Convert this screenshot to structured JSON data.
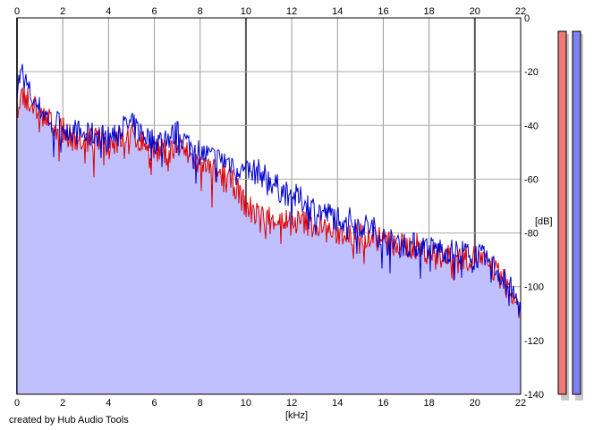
{
  "chart_data": {
    "type": "area",
    "x_ticks": [
      0,
      2,
      4,
      6,
      8,
      10,
      12,
      14,
      16,
      18,
      20,
      22
    ],
    "y_ticks": [
      0,
      -20,
      -40,
      -60,
      -80,
      -100,
      -120,
      -140
    ],
    "xlim": [
      0,
      22
    ],
    "ylim": [
      -140,
      0
    ],
    "xlabel": "[kHz]",
    "ylabel": "[dB]",
    "grid": true,
    "series": [
      {
        "color": "#0000cc",
        "x": [
          0,
          0.25,
          0.5,
          0.75,
          1,
          1.5,
          2,
          2.5,
          3,
          3.5,
          4,
          4.5,
          5,
          5.5,
          6,
          6.5,
          7,
          7.5,
          8,
          8.5,
          9,
          9.5,
          10,
          10.5,
          11,
          11.5,
          12,
          12.5,
          13,
          13.5,
          14,
          14.5,
          15,
          15.5,
          16,
          16.5,
          17,
          17.5,
          18,
          18.5,
          19,
          19.5,
          20,
          20.5,
          21,
          21.5,
          22
        ],
        "values": [
          -25,
          -20,
          -27,
          -31,
          -34,
          -38,
          -40,
          -42,
          -44,
          -43,
          -45,
          -41,
          -40,
          -43,
          -46,
          -45,
          -43,
          -47,
          -50,
          -52,
          -53,
          -54,
          -58,
          -57,
          -60,
          -64,
          -66,
          -68,
          -71,
          -73,
          -74,
          -75,
          -77,
          -78,
          -82,
          -84,
          -84,
          -85,
          -86,
          -86,
          -87,
          -87,
          -88,
          -90,
          -94,
          -100,
          -108
        ]
      },
      {
        "color": "#dd0000",
        "x": [
          0,
          0.25,
          0.5,
          0.75,
          1,
          1.5,
          2,
          2.5,
          3,
          3.5,
          4,
          4.5,
          5,
          5.5,
          6,
          6.5,
          7,
          7.5,
          8,
          8.5,
          9,
          9.5,
          10,
          10.5,
          11,
          11.5,
          12,
          12.5,
          13,
          13.5,
          14,
          14.5,
          15,
          15.5,
          16,
          16.5,
          17,
          17.5,
          18,
          18.5,
          19,
          19.5,
          20,
          20.5,
          21,
          21.5,
          22
        ],
        "values": [
          -40,
          -28,
          -30,
          -33,
          -36,
          -39,
          -42,
          -45,
          -46,
          -45,
          -47,
          -45,
          -44,
          -46,
          -49,
          -50,
          -48,
          -51,
          -55,
          -57,
          -58,
          -62,
          -70,
          -73,
          -74,
          -75,
          -76,
          -76,
          -77,
          -79,
          -80,
          -80,
          -81,
          -81,
          -83,
          -85,
          -85,
          -85,
          -87,
          -89,
          -89,
          -89,
          -89,
          -91,
          -95,
          -101,
          -109
        ]
      }
    ],
    "fill_color": "#c0c0ff",
    "levels": {
      "ylim": [
        -140,
        0
      ],
      "bars": [
        {
          "color": "#f07878",
          "value": -5
        },
        {
          "color": "#8080f0",
          "value": -5
        }
      ]
    }
  },
  "footer": {
    "credit": "created by Hub Audio Tools"
  }
}
